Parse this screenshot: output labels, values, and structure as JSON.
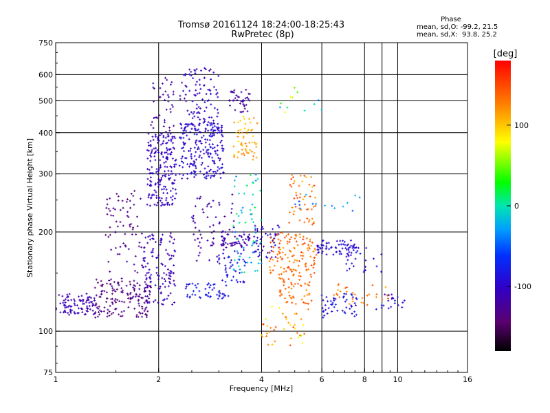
{
  "chart_data": {
    "type": "scatter",
    "title": "Tromsø 20161124 18:24:00-18:25:43",
    "subtitle": "RwPretec (8p)",
    "xlabel": "Frequency [MHz]",
    "ylabel": "Stationary phase Virtual Height [km]",
    "x_scale": "log",
    "y_scale": "log",
    "xlim": [
      1,
      16
    ],
    "ylim": [
      75,
      750
    ],
    "x_ticks": [
      {
        "value": 1,
        "label": "1"
      },
      {
        "value": 2,
        "label": "2"
      },
      {
        "value": 4,
        "label": "4"
      },
      {
        "value": 6,
        "label": "6"
      },
      {
        "value": 8,
        "label": "8"
      },
      {
        "value": 10,
        "label": "10"
      },
      {
        "value": 16,
        "label": "16"
      }
    ],
    "x_gridlines": [
      2,
      4,
      6,
      8,
      9,
      10
    ],
    "y_ticks": [
      {
        "value": 75,
        "label": "75"
      },
      {
        "value": 100,
        "label": "100"
      },
      {
        "value": 200,
        "label": "200"
      },
      {
        "value": 300,
        "label": "300"
      },
      {
        "value": 400,
        "label": "400"
      },
      {
        "value": 500,
        "label": "500"
      },
      {
        "value": 600,
        "label": "600"
      },
      {
        "value": 750,
        "label": "750"
      }
    ],
    "y_gridlines": [
      100,
      200,
      300,
      400,
      500,
      600
    ],
    "grid": true,
    "stats": {
      "heading": "Phase",
      "line_o": "mean, sd,O: -99.2, 21.5",
      "line_x": "mean, sd,X:  93.8, 25.2"
    },
    "colorbar": {
      "label": "[deg]",
      "range": [
        -180,
        180
      ],
      "ticks": [
        {
          "value": 100,
          "label": "100"
        },
        {
          "value": 0,
          "label": "0"
        },
        {
          "value": -100,
          "label": "-100"
        }
      ]
    },
    "clusters": [
      {
        "f": [
          1.0,
          1.3
        ],
        "h": [
          112,
          130
        ],
        "phase": [
          -125,
          -100
        ],
        "n": 90
      },
      {
        "f": [
          1.3,
          1.9
        ],
        "h": [
          110,
          145
        ],
        "phase": [
          -150,
          -120
        ],
        "n": 160
      },
      {
        "f": [
          1.4,
          1.8
        ],
        "h": [
          195,
          270
        ],
        "phase": [
          -150,
          -120
        ],
        "n": 45
      },
      {
        "f": [
          1.4,
          1.8
        ],
        "h": [
          150,
          200
        ],
        "phase": [
          -140,
          -115
        ],
        "n": 25
      },
      {
        "f": [
          1.8,
          2.25
        ],
        "h": [
          120,
          200
        ],
        "phase": [
          -125,
          -95
        ],
        "n": 120
      },
      {
        "f": [
          1.85,
          2.25
        ],
        "h": [
          240,
          400
        ],
        "phase": [
          -115,
          -95
        ],
        "n": 200
      },
      {
        "f": [
          1.9,
          2.25
        ],
        "h": [
          400,
          600
        ],
        "phase": [
          -130,
          -110
        ],
        "n": 40
      },
      {
        "f": [
          2.3,
          3.1
        ],
        "h": [
          290,
          430
        ],
        "phase": [
          -115,
          -80
        ],
        "n": 230
      },
      {
        "f": [
          2.3,
          3.0
        ],
        "h": [
          430,
          630
        ],
        "phase": [
          -120,
          -85
        ],
        "n": 90
      },
      {
        "f": [
          2.4,
          3.2
        ],
        "h": [
          125,
          140
        ],
        "phase": [
          -90,
          -70
        ],
        "n": 50
      },
      {
        "f": [
          2.5,
          3.4
        ],
        "h": [
          160,
          260
        ],
        "phase": [
          -130,
          -110
        ],
        "n": 70
      },
      {
        "f": [
          3.0,
          3.7
        ],
        "h": [
          180,
          200
        ],
        "phase": [
          -120,
          -105
        ],
        "n": 50
      },
      {
        "f": [
          3.2,
          3.7
        ],
        "h": [
          460,
          540
        ],
        "phase": [
          -130,
          -110
        ],
        "n": 40
      },
      {
        "f": [
          3.3,
          3.9
        ],
        "h": [
          330,
          450
        ],
        "phase": [
          90,
          130
        ],
        "n": 60
      },
      {
        "f": [
          3.3,
          4.0
        ],
        "h": [
          150,
          300
        ],
        "phase": [
          -40,
          20
        ],
        "n": 60
      },
      {
        "f": [
          3.0,
          3.6
        ],
        "h": [
          140,
          180
        ],
        "phase": [
          -100,
          -70
        ],
        "n": 40
      },
      {
        "f": [
          3.8,
          4.5
        ],
        "h": [
          165,
          210
        ],
        "phase": [
          -110,
          -80
        ],
        "n": 50
      },
      {
        "f": [
          4.2,
          5.8
        ],
        "h": [
          150,
          200
        ],
        "phase": [
          110,
          160
        ],
        "n": 120
      },
      {
        "f": [
          4.5,
          5.6
        ],
        "h": [
          120,
          150
        ],
        "phase": [
          120,
          150
        ],
        "n": 60
      },
      {
        "f": [
          4.8,
          5.8
        ],
        "h": [
          210,
          300
        ],
        "phase": [
          100,
          160
        ],
        "n": 50
      },
      {
        "f": [
          4.0,
          5.5
        ],
        "h": [
          90,
          120
        ],
        "phase": [
          70,
          150
        ],
        "n": 40
      },
      {
        "f": [
          5.8,
          7.5
        ],
        "h": [
          170,
          190
        ],
        "phase": [
          -110,
          -80
        ],
        "n": 60
      },
      {
        "f": [
          6.0,
          7.6
        ],
        "h": [
          110,
          130
        ],
        "phase": [
          -100,
          -70
        ],
        "n": 50
      },
      {
        "f": [
          6.5,
          9.5
        ],
        "h": [
          120,
          140
        ],
        "phase": [
          110,
          150
        ],
        "n": 30
      },
      {
        "f": [
          7.0,
          9.0
        ],
        "h": [
          150,
          180
        ],
        "phase": [
          -110,
          -70
        ],
        "n": 30
      },
      {
        "f": [
          8.5,
          10.5
        ],
        "h": [
          115,
          130
        ],
        "phase": [
          -100,
          -80
        ],
        "n": 20
      },
      {
        "f": [
          4.0,
          6.0
        ],
        "h": [
          460,
          560
        ],
        "phase": [
          -40,
          100
        ],
        "n": 12
      },
      {
        "f": [
          5.0,
          8.0
        ],
        "h": [
          230,
          260
        ],
        "phase": [
          -60,
          -20
        ],
        "n": 15
      }
    ],
    "colors": {
      "grid": "#000000",
      "axes": "#000000",
      "background": "#ffffff",
      "colormap": [
        "#000000",
        "#7a007a",
        "#2b00ff",
        "#00c8ff",
        "#00ff00",
        "#ffff00",
        "#ff8000",
        "#ff0000"
      ]
    }
  }
}
